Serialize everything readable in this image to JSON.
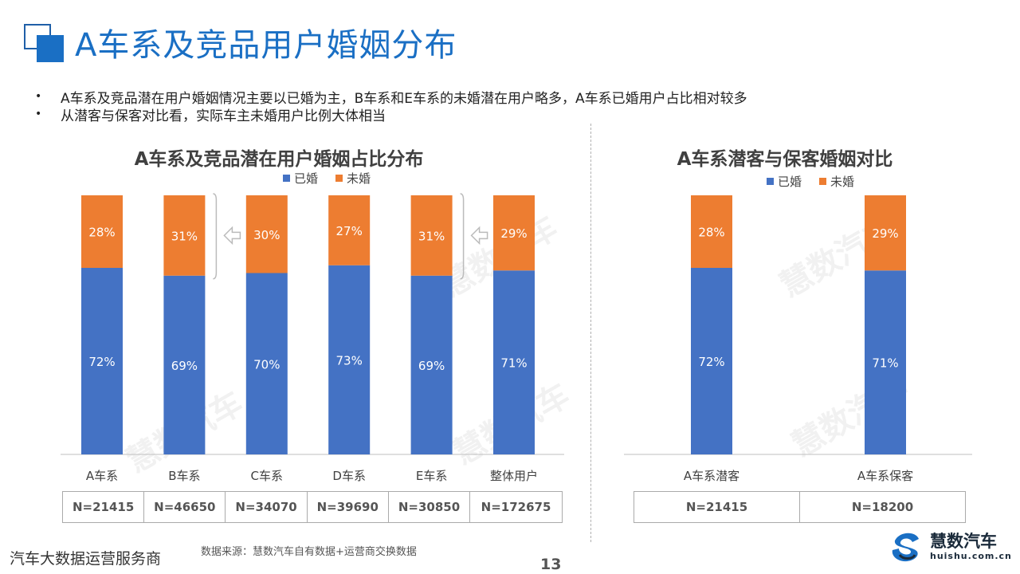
{
  "page_title": "A车系及竞品用户婚姻分布",
  "bullets": [
    "A车系及竞品潜在用户婚姻情况主要以已婚为主，B车系和E车系的未婚潜在用户略多，A车系已婚用户占比相对较多",
    "从潜客与保客对比看，实际车主未婚用户比例大体相当"
  ],
  "bullet_symbol": "•",
  "watermark_text": "慧数汽车",
  "colors": {
    "married": "#4472c4",
    "unmarried": "#ed7d31",
    "accent": "#1a6fc4"
  },
  "chart_data": [
    {
      "type": "bar",
      "stacked": true,
      "title": "A车系及竞品潜在用户婚姻占比分布",
      "categories": [
        "A车系",
        "B车系",
        "C车系",
        "D车系",
        "E车系",
        "整体用户"
      ],
      "series": [
        {
          "name": "已婚",
          "values": [
            72,
            69,
            70,
            73,
            69,
            71
          ]
        },
        {
          "name": "未婚",
          "values": [
            28,
            31,
            30,
            27,
            31,
            29
          ]
        }
      ],
      "value_suffix": "%",
      "ylim": [
        0,
        100
      ],
      "legend_position": "top",
      "grid": false,
      "sample_sizes": [
        "N=21415",
        "N=46650",
        "N=34070",
        "N=39690",
        "N=30850",
        "N=172675"
      ],
      "highlight_categories": [
        "B车系",
        "E车系"
      ]
    },
    {
      "type": "bar",
      "stacked": true,
      "title": "A车系潜客与保客婚姻对比",
      "categories": [
        "A车系潜客",
        "A车系保客"
      ],
      "series": [
        {
          "name": "已婚",
          "values": [
            72,
            71
          ]
        },
        {
          "name": "未婚",
          "values": [
            28,
            29
          ]
        }
      ],
      "value_suffix": "%",
      "ylim": [
        0,
        100
      ],
      "legend_position": "top",
      "grid": false,
      "sample_sizes": [
        "N=21415",
        "N=18200"
      ]
    }
  ],
  "footer": {
    "tagline": "汽车大数据运营服务商",
    "source": "数据来源：慧数汽车自有数据+运营商交换数据",
    "page_number": "13"
  },
  "brand": {
    "name": "慧数汽车",
    "url": "huishu.com.cn"
  }
}
